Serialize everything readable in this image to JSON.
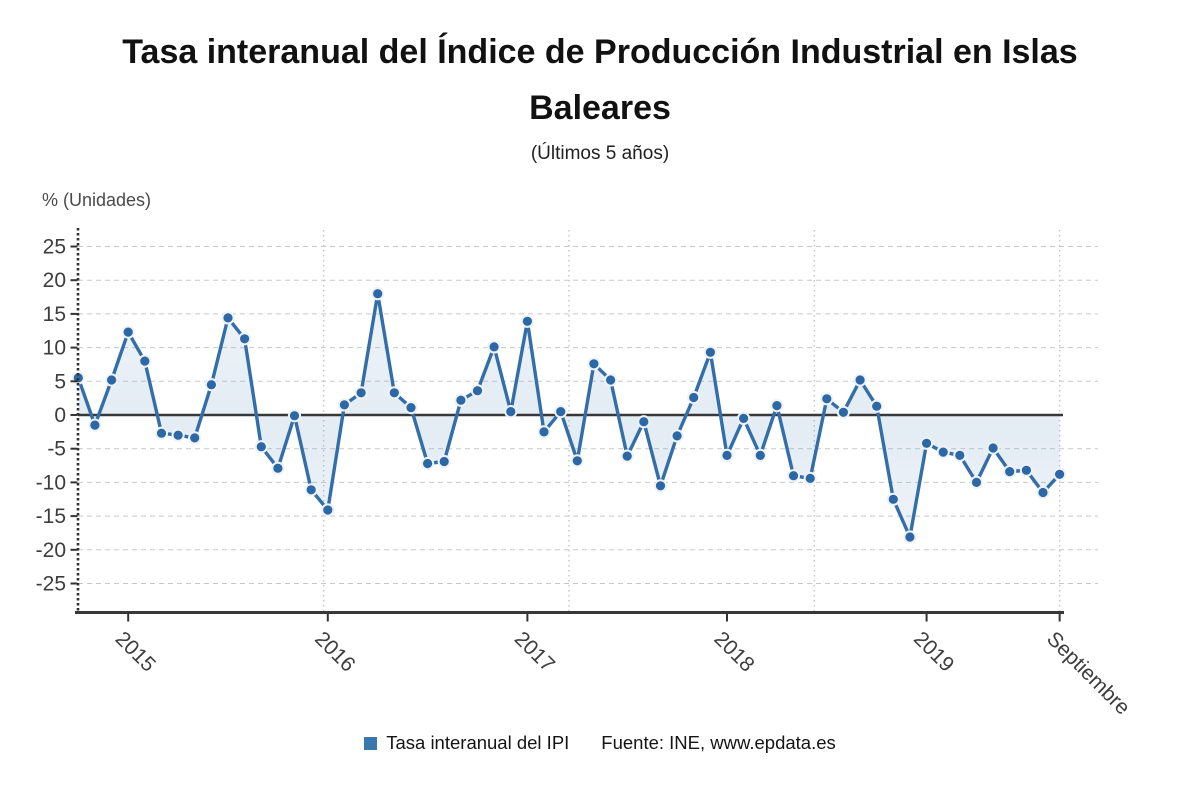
{
  "header": {
    "title_line1": "Tasa interanual del Índice de Producción Industrial en Islas",
    "title_line2": "Baleares",
    "subtitle": "(Últimos 5 años)"
  },
  "axes": {
    "unit_label": "% (Unidades)"
  },
  "legend": {
    "series_label": "Tasa interanual del IPI",
    "source_label": "Fuente: INE, www.epdata.es"
  },
  "colors": {
    "line": "#336ea8",
    "marker": "#2c68a5",
    "marker_ring": "#eef2f7",
    "area": "#7aa3c9",
    "grid": "#c8c8c8",
    "vgrid": "#bfc5cc",
    "axis": "#383838",
    "tick_text": "#3d3d3d",
    "legend_swatch": "#3a77ad"
  },
  "chart_data": {
    "type": "line",
    "title": "Tasa interanual del Índice de Producción Industrial en Islas Baleares",
    "subtitle": "(Últimos 5 años)",
    "ylabel": "% (Unidades)",
    "xlabel": "",
    "grid": true,
    "legend_position": "bottom",
    "zero_line": true,
    "ylim": [
      -29,
      27.5
    ],
    "y_ticks": [
      25,
      20,
      15,
      10,
      5,
      0,
      -5,
      -10,
      -15,
      -20,
      -25
    ],
    "x_tick_labels": [
      "2015",
      "2016",
      "2017",
      "2018",
      "2019",
      "Septiembre"
    ],
    "series": [
      {
        "name": "Tasa interanual del IPI",
        "frequency": "monthly",
        "start_period": "octubre 2014",
        "end_period": "septiembre 2019",
        "values": [
          5.5,
          -1.5,
          5.2,
          12.3,
          8.0,
          -2.7,
          -3.0,
          -3.4,
          4.5,
          14.4,
          11.3,
          -4.7,
          -7.9,
          -0.1,
          -11.1,
          -14.1,
          1.5,
          3.3,
          18.0,
          3.3,
          1.1,
          -7.2,
          -6.9,
          2.2,
          3.6,
          10.1,
          0.5,
          13.9,
          -2.5,
          0.5,
          -6.8,
          7.6,
          5.2,
          -6.1,
          -1.0,
          -10.5,
          -3.1,
          2.6,
          9.3,
          -6.0,
          -0.5,
          -6.0,
          1.4,
          -9.0,
          -9.4,
          2.4,
          0.4,
          5.2,
          1.3,
          -12.5,
          -18.1,
          -4.2,
          -5.5,
          -6.0,
          -10.0,
          -4.9,
          -8.4,
          -8.2,
          -11.5,
          -8.8
        ]
      }
    ]
  }
}
